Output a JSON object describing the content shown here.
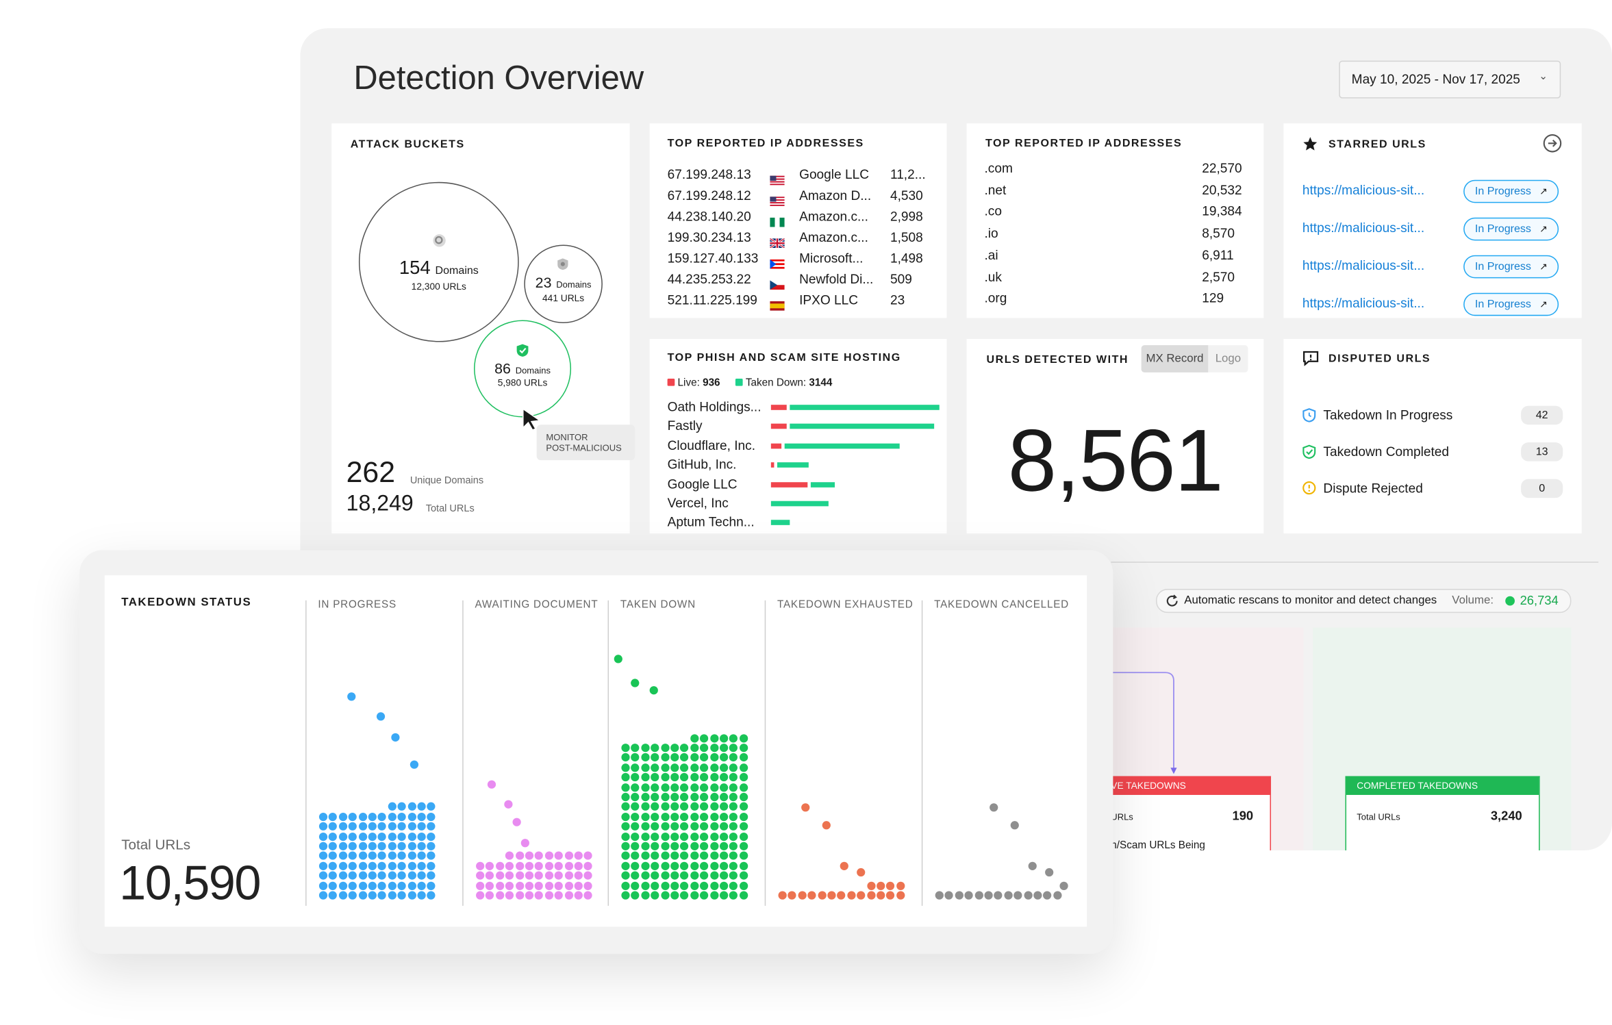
{
  "title": "Detection Overview",
  "date_range": "May 10, 2025 - Nov 17, 2025",
  "attack_buckets": {
    "title": "ATTACK BUCKETS",
    "bubbles": [
      {
        "domains": "154",
        "domains_label": "Domains",
        "urls": "12,300 URLs",
        "icon": "search-icon"
      },
      {
        "domains": "23",
        "domains_label": "Domains",
        "urls": "441 URLs",
        "icon": "shield-icon"
      },
      {
        "domains": "86",
        "domains_label": "Domains",
        "urls": "5,980 URLs",
        "icon": "shield-check-icon"
      }
    ],
    "tooltip_line1": "MONITOR",
    "tooltip_line2": "POST-MALICIOUS",
    "unique_domains": "262",
    "unique_domains_label": "Unique Domains",
    "total_urls": "18,249",
    "total_urls_label": "Total URLs"
  },
  "top_ips": {
    "title": "TOP REPORTED IP ADDRESSES",
    "rows": [
      {
        "ip": "67.199.248.13",
        "flag": "us",
        "org": "Google LLC",
        "count": "11,2..."
      },
      {
        "ip": "67.199.248.12",
        "flag": "us",
        "org": "Amazon D...",
        "count": "4,530"
      },
      {
        "ip": "44.238.140.20",
        "flag": "ng",
        "org": "Amazon.c...",
        "count": "2,998"
      },
      {
        "ip": "199.30.234.13",
        "flag": "gb",
        "org": "Amazon.c...",
        "count": "1,508"
      },
      {
        "ip": "159.127.40.133",
        "flag": "pr",
        "org": "Microsoft...",
        "count": "1,498"
      },
      {
        "ip": "44.235.253.22",
        "flag": "cz",
        "org": "Newfold Di...",
        "count": "509"
      },
      {
        "ip": "521.11.225.199",
        "flag": "es",
        "org": "IPXO LLC",
        "count": "23"
      }
    ]
  },
  "top_tlds": {
    "title": "TOP REPORTED IP ADDRESSES",
    "rows": [
      {
        "tld": ".com",
        "count": "22,570"
      },
      {
        "tld": ".net",
        "count": "20,532"
      },
      {
        "tld": ".co",
        "count": "19,384"
      },
      {
        "tld": ".io",
        "count": "8,570"
      },
      {
        "tld": ".ai",
        "count": "6,911"
      },
      {
        "tld": ".uk",
        "count": "2,570"
      },
      {
        "tld": ".org",
        "count": "129"
      }
    ]
  },
  "starred": {
    "title": "STARRED URLS",
    "rows": [
      {
        "url": "https://malicious-sit...",
        "status": "In Progress"
      },
      {
        "url": "https://malicious-sit...",
        "status": "In Progress"
      },
      {
        "url": "https://malicious-sit...",
        "status": "In Progress"
      },
      {
        "url": "https://malicious-sit...",
        "status": "In Progress"
      }
    ]
  },
  "hosting": {
    "title": "TOP PHISH AND SCAM SITE HOSTING",
    "live_label": "Live:",
    "live_value": "936",
    "taken_label": "Taken Down:",
    "taken_value": "3144",
    "colors": {
      "live": "#f0454d",
      "taken": "#1ed28c"
    },
    "rows": [
      {
        "name": "Oath Holdings...",
        "live": 6,
        "taken": 57
      },
      {
        "name": "Fastly",
        "live": 6,
        "taken": 55
      },
      {
        "name": "Cloudflare, Inc.",
        "live": 4,
        "taken": 44
      },
      {
        "name": "GitHub, Inc.",
        "live": 1,
        "taken": 12
      },
      {
        "name": "Google LLC",
        "live": 14,
        "taken": 9
      },
      {
        "name": "Vercel, Inc",
        "live": 0,
        "taken": 22
      },
      {
        "name": "Aptum Techn...",
        "live": 0,
        "taken": 7
      }
    ]
  },
  "urls_detected": {
    "title": "URLS DETECTED WITH",
    "tab_mx": "MX Record",
    "tab_logo": "Logo",
    "value": "8,561"
  },
  "disputed": {
    "title": "DISPUTED URLS",
    "rows": [
      {
        "label": "Takedown In Progress",
        "count": "42"
      },
      {
        "label": "Takedown Completed",
        "count": "13"
      },
      {
        "label": "Dispute Rejected",
        "count": "0"
      }
    ]
  },
  "rescan": {
    "text": "Automatic rescans to monitor and detect changes",
    "volume_label": "Volume:",
    "volume_value": "26,734"
  },
  "flow": {
    "active_title": "VE TAKEDOWNS",
    "active_row_label": "URLs",
    "active_row_value": "190",
    "active_sub": "n/Scam URLs Being",
    "completed_title": "COMPLETED TAKEDOWNS",
    "completed_row_label": "Total URLs",
    "completed_row_value": "3,240"
  },
  "takedown": {
    "title": "TAKEDOWN STATUS",
    "total_label": "Total URLs",
    "total_value": "10,590",
    "columns": [
      {
        "label": "IN PROGRESS",
        "color": "#3aa8f5"
      },
      {
        "label": "AWAITING DOCUMENT",
        "color": "#e88bf0"
      },
      {
        "label": "TAKEN DOWN",
        "color": "#19c456"
      },
      {
        "label": "TAKEDOWN EXHAUSTED",
        "color": "#ec7350"
      },
      {
        "label": "TAKEDOWN CANCELLED",
        "color": "#8f8f8f"
      }
    ]
  }
}
